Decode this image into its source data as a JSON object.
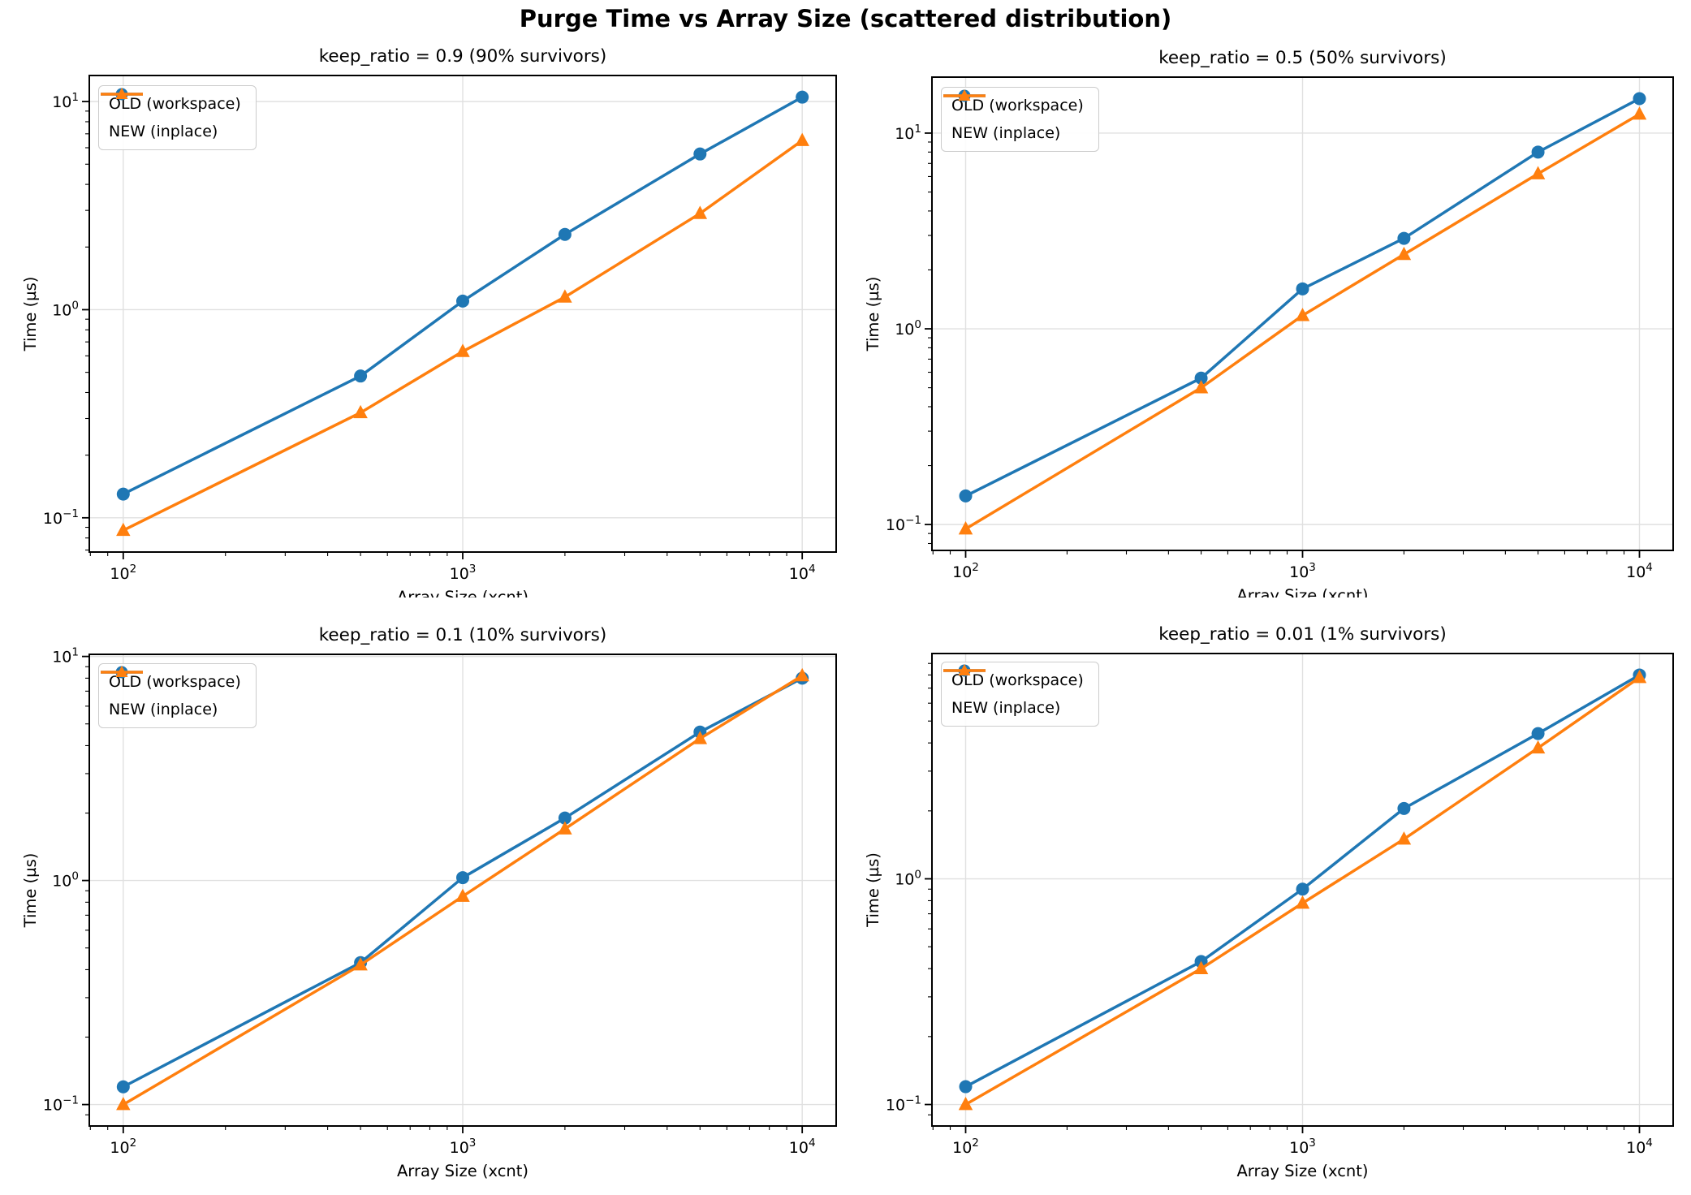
{
  "suptitle": "Purge Time vs Array Size (scattered distribution)",
  "colors": {
    "old": "#1f77b4",
    "new": "#ff7f0e",
    "grid": "#e0e0e0",
    "spine": "#000000",
    "text": "#000000"
  },
  "legend": {
    "old_label": "OLD (workspace)",
    "new_label": "NEW (inplace)"
  },
  "axis_labels": {
    "x": "Array Size (xcnt)",
    "y": "Time (µs)"
  },
  "chart_data": [
    {
      "type": "line",
      "title": "keep_ratio = 0.9 (90% survivors)",
      "xlabel": "Array Size (xcnt)",
      "ylabel": "Time (µs)",
      "xscale": "log",
      "yscale": "log",
      "grid": true,
      "legend_position": "upper left",
      "x": [
        100,
        500,
        1000,
        2000,
        5000,
        10000
      ],
      "x_tick_exponents": [
        2,
        3,
        4
      ],
      "y_tick_exponents": [
        1,
        0,
        -1
      ],
      "series": [
        {
          "name": "OLD (workspace)",
          "marker": "circle",
          "color_key": "old",
          "values": [
            0.13,
            0.48,
            1.1,
            2.3,
            5.6,
            10.5
          ]
        },
        {
          "name": "NEW (inplace)",
          "marker": "triangle",
          "color_key": "new",
          "values": [
            0.087,
            0.32,
            0.63,
            1.15,
            2.9,
            6.5
          ]
        }
      ]
    },
    {
      "type": "line",
      "title": "keep_ratio = 0.5 (50% survivors)",
      "xlabel": "Array Size (xcnt)",
      "ylabel": "Time (µs)",
      "xscale": "log",
      "yscale": "log",
      "grid": true,
      "legend_position": "upper left",
      "x": [
        100,
        500,
        1000,
        2000,
        5000,
        10000
      ],
      "x_tick_exponents": [
        2,
        3,
        4
      ],
      "y_tick_exponents": [
        1,
        0,
        -1
      ],
      "series": [
        {
          "name": "OLD (workspace)",
          "marker": "circle",
          "color_key": "old",
          "values": [
            0.14,
            0.56,
            1.6,
            2.9,
            8.0,
            15.0
          ]
        },
        {
          "name": "NEW (inplace)",
          "marker": "triangle",
          "color_key": "new",
          "values": [
            0.095,
            0.5,
            1.17,
            2.4,
            6.2,
            12.5
          ]
        }
      ]
    },
    {
      "type": "line",
      "title": "keep_ratio = 0.1 (10% survivors)",
      "xlabel": "Array Size (xcnt)",
      "ylabel": "Time (µs)",
      "xscale": "log",
      "yscale": "log",
      "grid": true,
      "legend_position": "upper left",
      "x": [
        100,
        500,
        1000,
        2000,
        5000,
        10000
      ],
      "x_tick_exponents": [
        2,
        3,
        4
      ],
      "y_tick_exponents": [
        1,
        0,
        -1
      ],
      "series": [
        {
          "name": "OLD (workspace)",
          "marker": "circle",
          "color_key": "old",
          "values": [
            0.12,
            0.43,
            1.03,
            1.9,
            4.6,
            8.0
          ]
        },
        {
          "name": "NEW (inplace)",
          "marker": "triangle",
          "color_key": "new",
          "values": [
            0.1,
            0.42,
            0.85,
            1.7,
            4.3,
            8.2
          ]
        }
      ]
    },
    {
      "type": "line",
      "title": "keep_ratio = 0.01 (1% survivors)",
      "xlabel": "Array Size (xcnt)",
      "ylabel": "Time (µs)",
      "xscale": "log",
      "yscale": "log",
      "grid": true,
      "legend_position": "upper left",
      "x": [
        100,
        500,
        1000,
        2000,
        5000,
        10000
      ],
      "x_tick_exponents": [
        2,
        3,
        4
      ],
      "y_tick_exponents": [
        0,
        -1
      ],
      "series": [
        {
          "name": "OLD (workspace)",
          "marker": "circle",
          "color_key": "old",
          "values": [
            0.12,
            0.43,
            0.9,
            2.05,
            4.4,
            8.0
          ]
        },
        {
          "name": "NEW (inplace)",
          "marker": "triangle",
          "color_key": "new",
          "values": [
            0.1,
            0.4,
            0.78,
            1.5,
            3.8,
            7.8
          ]
        }
      ]
    }
  ]
}
